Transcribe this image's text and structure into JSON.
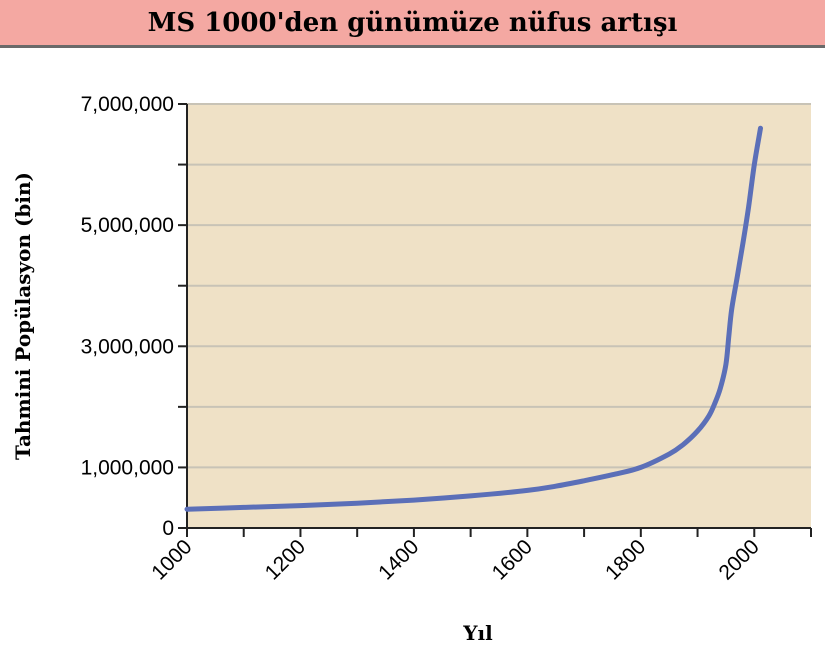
{
  "banner": {
    "title": "MS 1000'den günümüze nüfus artışı",
    "color": "#f4a8a2"
  },
  "chart_data": {
    "type": "line",
    "title": "MS 1000'den günümüze nüfus artışı",
    "xlabel": "Yıl",
    "ylabel": "Tahmini Popülasyon (bin)",
    "xlim": [
      1000,
      2100
    ],
    "ylim": [
      0,
      7000000
    ],
    "x_ticks": [
      1000,
      1200,
      1400,
      1600,
      1800,
      2000
    ],
    "x_tick_labels": [
      "1000",
      "1200",
      "1400",
      "1600",
      "1800",
      "2000"
    ],
    "y_ticks": [
      0,
      1000000,
      3000000,
      5000000,
      7000000
    ],
    "y_tick_labels": [
      "0",
      "1,000,000",
      "3,000,000",
      "5,000,000",
      "7,000,000"
    ],
    "grid": true,
    "background_color": "#efe1c6",
    "line_color": "#5b6fb8",
    "series": [
      {
        "x": [
          1000,
          1100,
          1200,
          1300,
          1400,
          1500,
          1600,
          1650,
          1700,
          1750,
          1800,
          1850,
          1875,
          1900,
          1920,
          1930,
          1940,
          1950,
          1955,
          1960,
          1970,
          1980,
          1990,
          2000,
          2011
        ],
        "values": [
          310000,
          340000,
          370000,
          410000,
          460000,
          530000,
          620000,
          690000,
          780000,
          880000,
          1000000,
          1220000,
          1380000,
          1600000,
          1850000,
          2050000,
          2300000,
          2700000,
          3150000,
          3600000,
          4150000,
          4700000,
          5300000,
          6000000,
          6600000
        ]
      }
    ]
  }
}
